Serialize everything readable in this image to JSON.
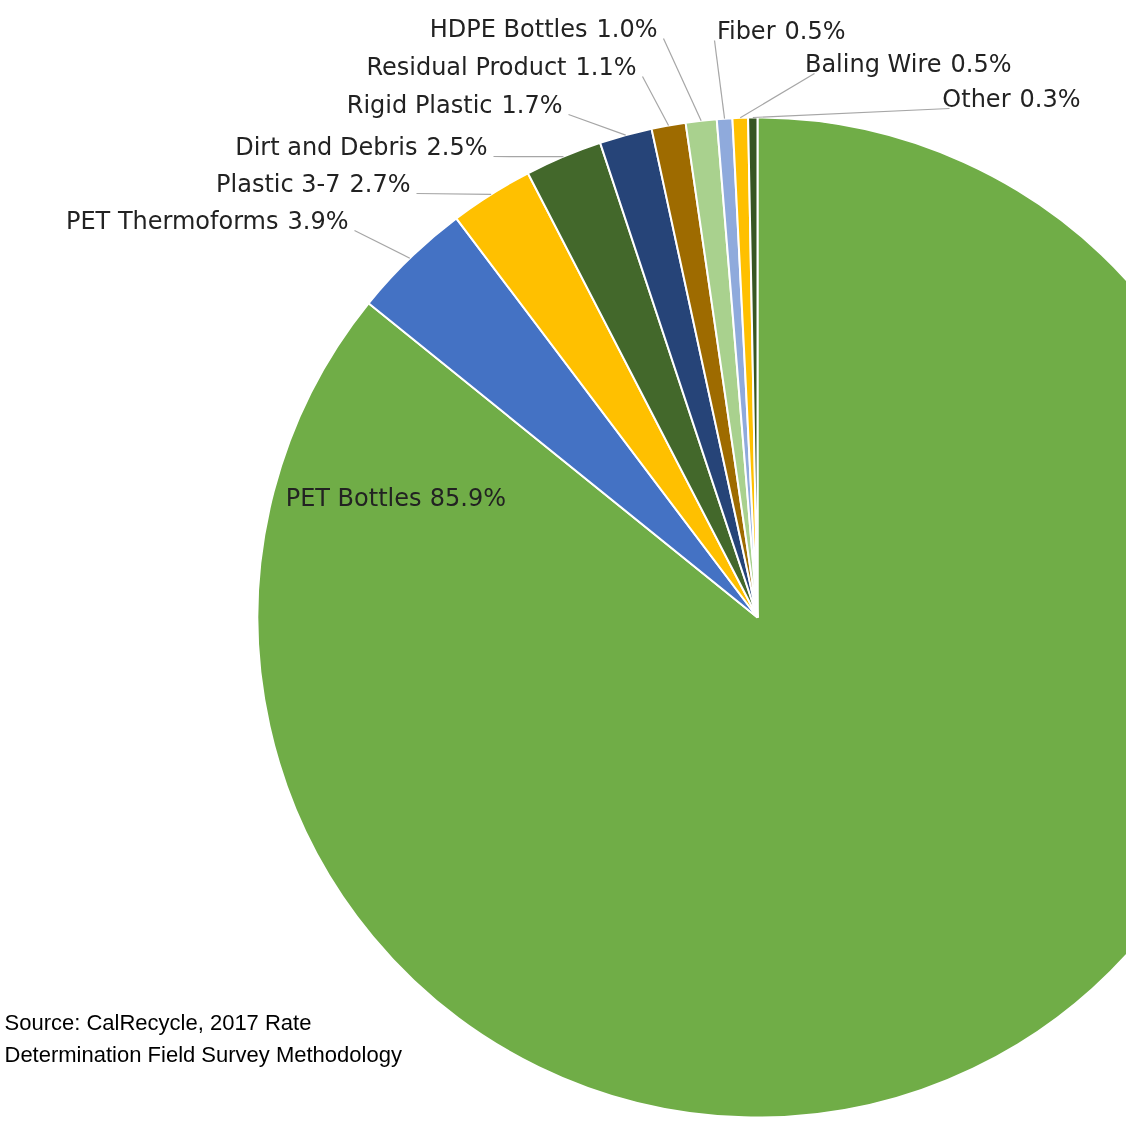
{
  "chart_data": {
    "type": "pie",
    "categories": [
      "PET Bottles",
      "PET Thermoforms",
      "Plastic 3-7",
      "Dirt and Debris",
      "Rigid Plastic",
      "Residual Product",
      "HDPE Bottles",
      "Fiber",
      "Baling Wire",
      "Other"
    ],
    "values": [
      85.9,
      3.9,
      2.7,
      2.5,
      1.7,
      1.1,
      1.0,
      0.5,
      0.5,
      0.3
    ],
    "colors": [
      "#70ad47",
      "#4472c4",
      "#ffc000",
      "#43682b",
      "#264478",
      "#9e6b00",
      "#a9d18e",
      "#8faadc",
      "#ffc000",
      "#375623"
    ],
    "value_labels": [
      "85.9%",
      "3.9%",
      "2.7%",
      "2.5%",
      "1.7%",
      "1.1%",
      "1.0%",
      "0.5%",
      "0.5%",
      "0.3%"
    ],
    "legend": false,
    "annotations": [
      "Source: CalRecycle, 2017 Rate\nDetermination Field Survey Methodology"
    ]
  }
}
